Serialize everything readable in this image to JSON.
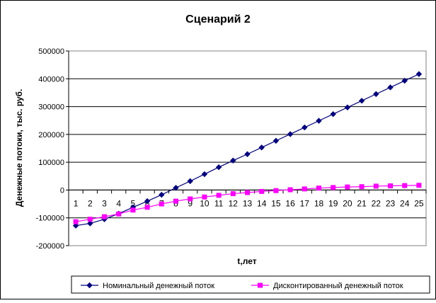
{
  "chart_data": {
    "type": "line",
    "title": "Сценарий 2",
    "xlabel": "t,лет",
    "ylabel": "Денежные потоки, тыс. руб.",
    "ylim": [
      -200000,
      500000
    ],
    "yticks": [
      -200000,
      -100000,
      0,
      100000,
      200000,
      300000,
      400000,
      500000
    ],
    "ytick_labels": [
      "-200000",
      "-100000",
      "0",
      "100000",
      "200000",
      "300000",
      "400000",
      "500000"
    ],
    "categories": [
      "1",
      "2",
      "3",
      "4",
      "5",
      "6",
      "7",
      "8",
      "9",
      "10",
      "11",
      "12",
      "13",
      "14",
      "15",
      "16",
      "17",
      "18",
      "19",
      "20",
      "21",
      "22",
      "23",
      "24",
      "25"
    ],
    "grid": "horizontal",
    "legend_position": "bottom",
    "series": [
      {
        "name": "Номинальный денежный поток",
        "color": "#000080",
        "marker": "diamond",
        "values": [
          -128000,
          -120000,
          -105000,
          -85000,
          -62000,
          -40000,
          -17000,
          8000,
          32000,
          57000,
          82000,
          106000,
          129000,
          153000,
          177000,
          201000,
          225000,
          249000,
          273000,
          297000,
          321000,
          345000,
          369000,
          393000,
          417000
        ]
      },
      {
        "name": "Дисконтированный денежный поток",
        "color": "#FF00FF",
        "marker": "square",
        "values": [
          -114000,
          -105000,
          -96000,
          -86000,
          -72000,
          -62000,
          -50000,
          -40000,
          -32000,
          -25000,
          -19000,
          -13000,
          -9000,
          -5000,
          -2000,
          1000,
          4000,
          7000,
          9000,
          11000,
          12000,
          14000,
          15000,
          16000,
          17000
        ]
      }
    ]
  }
}
